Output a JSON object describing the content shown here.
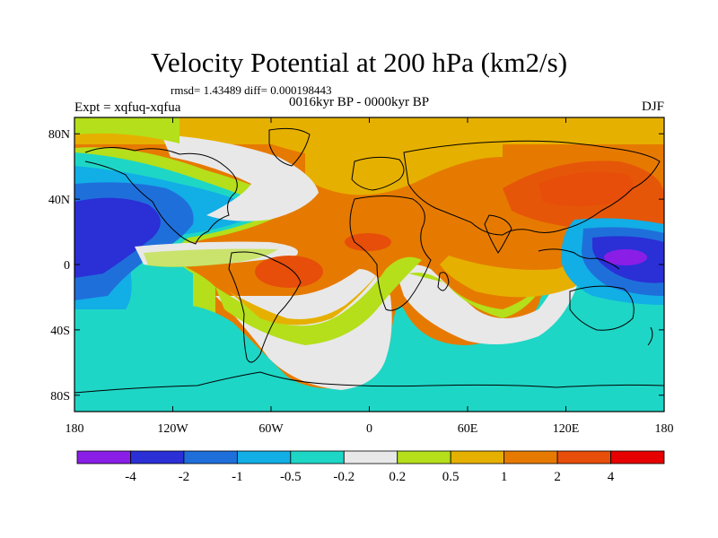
{
  "title": "Velocity Potential at 200 hPa (km2/s)",
  "stats": "rmsd= 1.43489 diff= 0.000198443",
  "left_label": "Expt = xqfuq-xqfua",
  "center_label": "0016kyr BP - 0000kyr BP",
  "right_label": "DJF",
  "map": {
    "projection": "cylindrical-equidistant",
    "lon_range": [
      -180,
      180
    ],
    "lat_range": [
      -90,
      90
    ],
    "lon_ticks": [
      {
        "value": -180,
        "label": "180"
      },
      {
        "value": -120,
        "label": "120W"
      },
      {
        "value": -60,
        "label": "60W"
      },
      {
        "value": 0,
        "label": "0"
      },
      {
        "value": 60,
        "label": "60E"
      },
      {
        "value": 120,
        "label": "120E"
      },
      {
        "value": 180,
        "label": "180"
      }
    ],
    "lat_ticks": [
      {
        "value": 80,
        "label": "80N"
      },
      {
        "value": 40,
        "label": "40N"
      },
      {
        "value": 0,
        "label": "0"
      },
      {
        "value": -40,
        "label": "40S"
      },
      {
        "value": -80,
        "label": "80S"
      }
    ]
  },
  "colorbar": {
    "colors": [
      "#8a1ee6",
      "#2a2fd6",
      "#1f6fdb",
      "#12aee6",
      "#1ed6c6",
      "#e8e8e8",
      "#b4df1a",
      "#e6b000",
      "#e67a00",
      "#e64e0a",
      "#e60000"
    ],
    "labels": [
      "-4",
      "-2",
      "-1",
      "-0.5",
      "-0.2",
      "0.2",
      "0.5",
      "1",
      "2",
      "4"
    ]
  }
}
